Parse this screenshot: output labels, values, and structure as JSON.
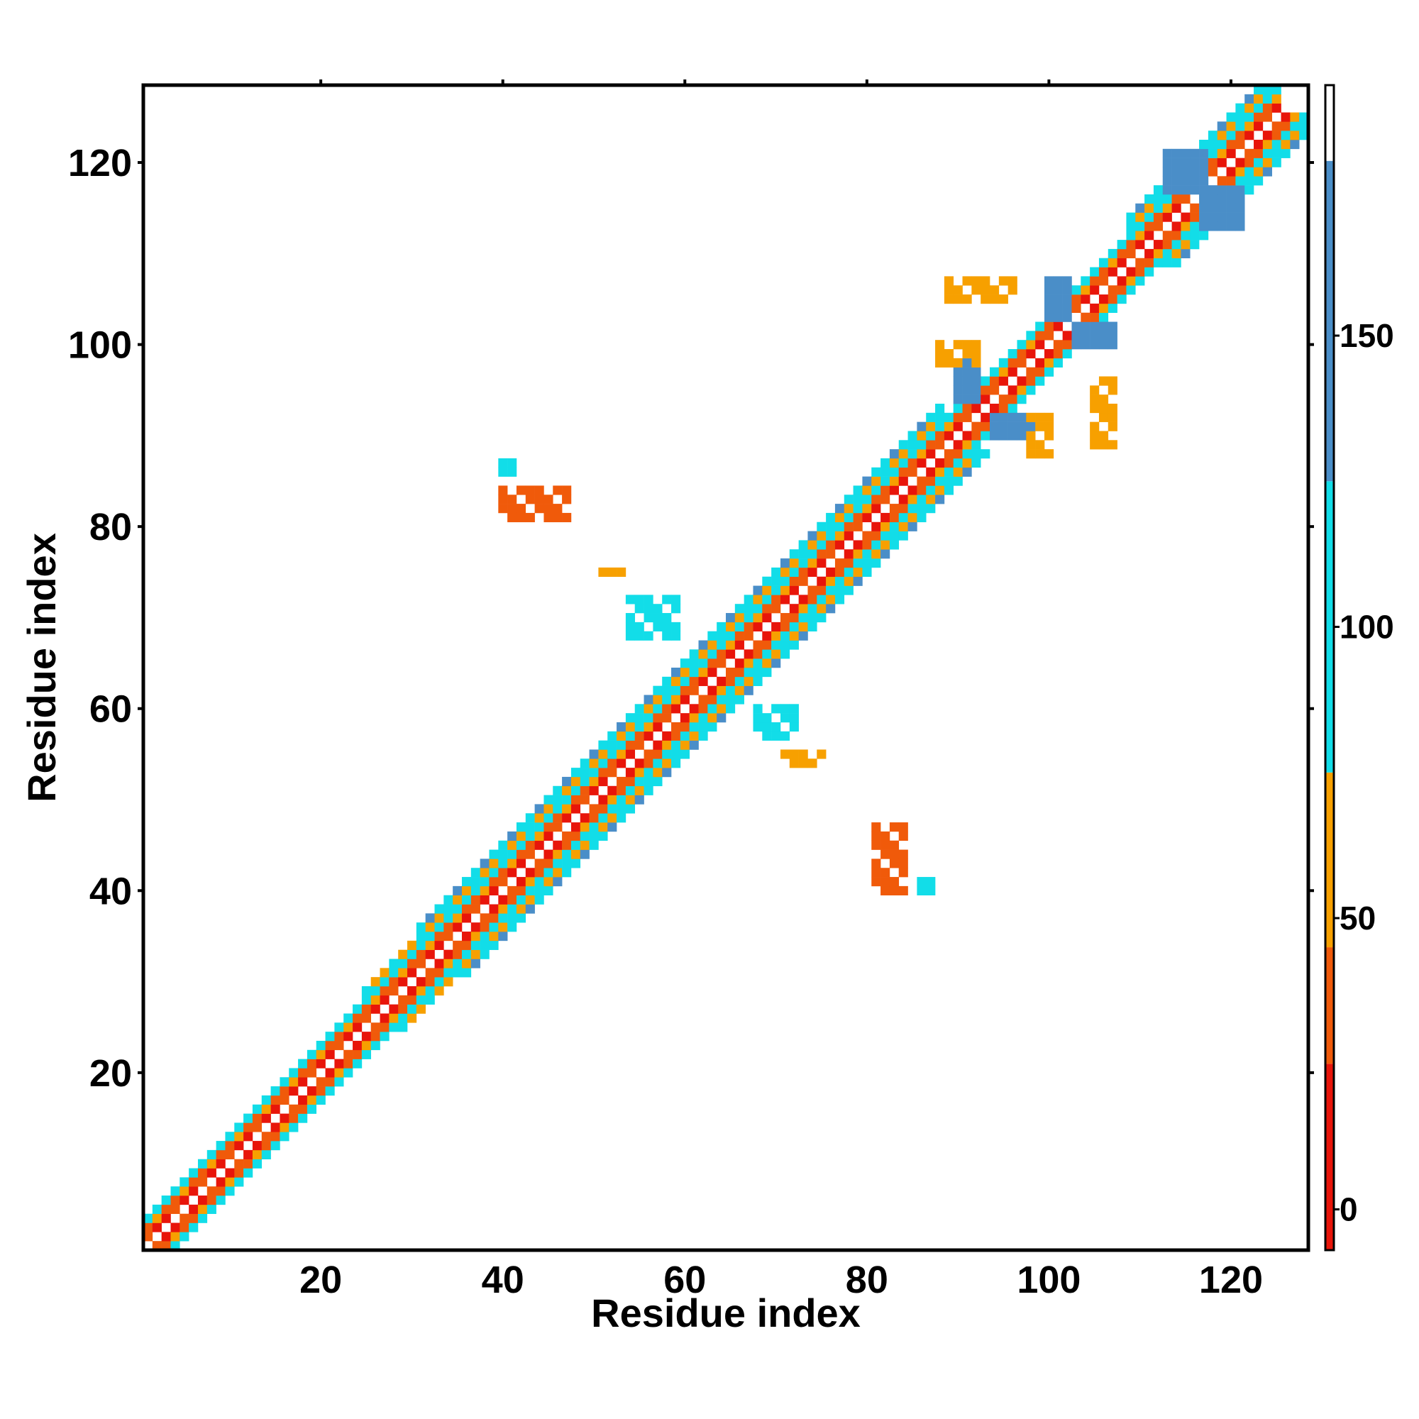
{
  "chart_data": {
    "type": "heatmap",
    "title": "",
    "xlabel": "Residue index",
    "ylabel": "Residue index",
    "xlim": [
      1,
      128
    ],
    "ylim": [
      1,
      128
    ],
    "x_ticks": [
      20,
      40,
      60,
      80,
      100,
      120
    ],
    "y_ticks": [
      20,
      40,
      60,
      80,
      100,
      120
    ],
    "x_tick_labels": [
      "20",
      "40",
      "60",
      "80",
      "100",
      "120"
    ],
    "y_tick_labels": [
      "20",
      "40",
      "60",
      "80",
      "100",
      "120"
    ],
    "grid": false,
    "legend": "none",
    "colorbar": {
      "position": "right",
      "range": [
        -7,
        193
      ],
      "ticks": [
        0,
        50,
        100,
        150
      ],
      "tick_labels": [
        "0",
        "50",
        "100",
        "150"
      ],
      "bands": [
        {
          "from": -7,
          "to": 25,
          "color": "#e8150a"
        },
        {
          "from": 25,
          "to": 45,
          "color": "#f05a0a"
        },
        {
          "from": 45,
          "to": 75,
          "color": "#f7a000"
        },
        {
          "from": 75,
          "to": 125,
          "color": "#12dde8"
        },
        {
          "from": 125,
          "to": 180,
          "color": "#4a8ec8"
        },
        {
          "from": 180,
          "to": 193,
          "color": "#ffffff"
        }
      ]
    },
    "value_colors": {
      "red": "#e8150a",
      "orange_red": "#f05a0a",
      "orange": "#f7a000",
      "cyan": "#12dde8",
      "steel_blue": "#4a8ec8"
    },
    "band_offsets": [
      {
        "offset": 1,
        "value": 10
      },
      {
        "offset": 2,
        "value": 40
      },
      {
        "offset": 3,
        "value": 100
      },
      {
        "offset": 4,
        "value": 60
      },
      {
        "offset": 5,
        "value": 110
      }
    ],
    "band_width_ranges": [
      {
        "from": 1,
        "to": 24,
        "max_offset": 3
      },
      {
        "from": 25,
        "to": 30,
        "max_offset": 4
      },
      {
        "from": 31,
        "to": 88,
        "max_offset": 5
      },
      {
        "from": 89,
        "to": 108,
        "max_offset": 3
      },
      {
        "from": 109,
        "to": 125,
        "max_offset": 5
      }
    ],
    "contact_patches": [
      {
        "x": [
          90,
          92
        ],
        "y": [
          94,
          98
        ],
        "value": 145
      },
      {
        "x": [
          94,
          98
        ],
        "y": [
          90,
          92
        ],
        "value": 145
      },
      {
        "x": [
          100,
          102
        ],
        "y": [
          103,
          107
        ],
        "value": 140
      },
      {
        "x": [
          103,
          107
        ],
        "y": [
          100,
          102
        ],
        "value": 140
      },
      {
        "x": [
          88,
          92
        ],
        "y": [
          98,
          100
        ],
        "value": 60
      },
      {
        "x": [
          98,
          100
        ],
        "y": [
          88,
          92
        ],
        "value": 60
      },
      {
        "x": [
          89,
          96
        ],
        "y": [
          105,
          107
        ],
        "value": 45
      },
      {
        "x": [
          105,
          107
        ],
        "y": [
          89,
          96
        ],
        "value": 45
      },
      {
        "x": [
          113,
          117
        ],
        "y": [
          117,
          121
        ],
        "value": 145
      },
      {
        "x": [
          117,
          121
        ],
        "y": [
          113,
          117
        ],
        "value": 145
      },
      {
        "x": [
          40,
          47
        ],
        "y": [
          81,
          84
        ],
        "value": 40
      },
      {
        "x": [
          40,
          41
        ],
        "y": [
          86,
          87
        ],
        "value": 110
      },
      {
        "x": [
          81,
          84
        ],
        "y": [
          40,
          47
        ],
        "value": 40
      },
      {
        "x": [
          86,
          87
        ],
        "y": [
          40,
          41
        ],
        "value": 110
      },
      {
        "x": [
          51,
          54
        ],
        "y": [
          75,
          75
        ],
        "value": 60
      },
      {
        "x": [
          54,
          59
        ],
        "y": [
          68,
          72
        ],
        "value": 100
      },
      {
        "x": [
          68,
          72
        ],
        "y": [
          57,
          60
        ],
        "value": 100
      },
      {
        "x": [
          71,
          75
        ],
        "y": [
          54,
          55
        ],
        "value": 60
      }
    ]
  }
}
